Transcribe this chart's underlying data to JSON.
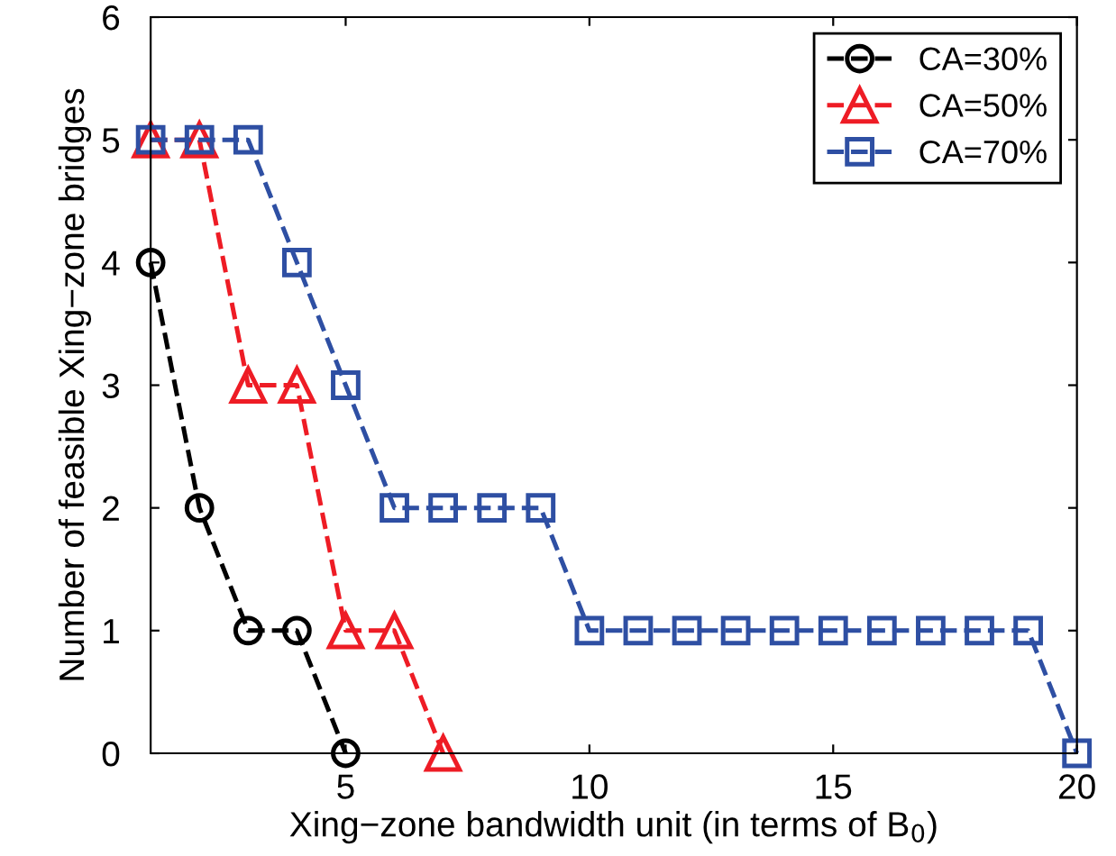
{
  "chart_data": {
    "type": "line",
    "xlabel": "Xing−zone bandwidth unit (in terms of B$_{0}$)",
    "ylabel": "Number of feasible Xing−zone bridges",
    "xlim": [
      1,
      20
    ],
    "xticks": [
      5,
      10,
      15,
      20
    ],
    "ylim": [
      0,
      6
    ],
    "yticks": [
      0,
      1,
      2,
      3,
      4,
      5,
      6
    ],
    "grid": false,
    "legend": "top right",
    "line_style": "dashed",
    "series": [
      {
        "name": "CA=30%",
        "color": "#000000",
        "marker": "circle",
        "x": [
          1,
          2,
          3,
          4,
          5
        ],
        "values": [
          4,
          2,
          1,
          1,
          0
        ]
      },
      {
        "name": "CA=50%",
        "color": "#ee1c25",
        "marker": "triangle",
        "x": [
          1,
          2,
          3,
          4,
          5,
          6,
          7
        ],
        "values": [
          5,
          5,
          3,
          3,
          1,
          1,
          0
        ]
      },
      {
        "name": "CA=70%",
        "color": "#2e4fa3",
        "marker": "square",
        "x": [
          1,
          2,
          3,
          4,
          5,
          6,
          7,
          8,
          9,
          10,
          11,
          12,
          13,
          14,
          15,
          16,
          17,
          18,
          19,
          20
        ],
        "values": [
          5,
          5,
          5,
          4,
          3,
          2,
          2,
          2,
          2,
          1,
          1,
          1,
          1,
          1,
          1,
          1,
          1,
          1,
          1,
          0
        ]
      }
    ]
  }
}
